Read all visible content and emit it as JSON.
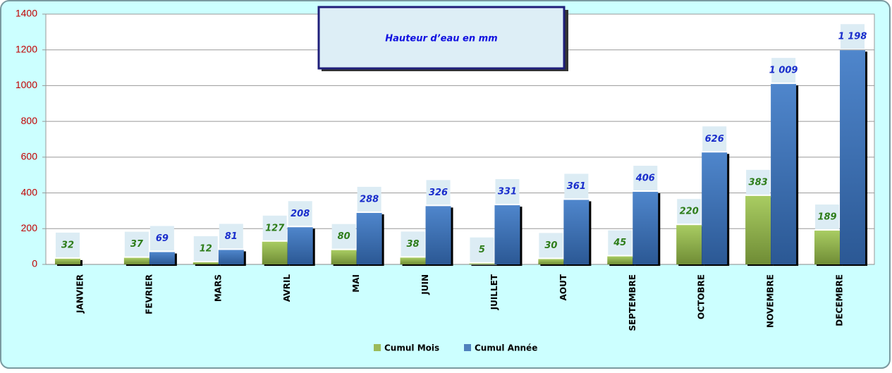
{
  "chart_data": {
    "type": "bar",
    "title": "Hauteur d’eau en mm",
    "categories": [
      "JANVIER",
      "FEVRIER",
      "MARS",
      "AVRIL",
      "MAI",
      "JUIN",
      "JUILLET",
      "AOUT",
      "SEPTEMBRE",
      "OCTOBRE",
      "NOVEMBRE",
      "DECEMBRE"
    ],
    "series": [
      {
        "name": "Cumul Mois",
        "color": "#9bbb59",
        "values": [
          32,
          37,
          12,
          127,
          80,
          38,
          5,
          30,
          45,
          220,
          383,
          189
        ]
      },
      {
        "name": "Cumul Année",
        "color": "#4f81bd",
        "values": [
          null,
          69,
          81,
          208,
          288,
          326,
          331,
          361,
          406,
          626,
          1009,
          1198
        ],
        "value_labels": [
          null,
          "69",
          "81",
          "208",
          "288",
          "326",
          "331",
          "361",
          "406",
          "626",
          "1 009",
          "1 198"
        ]
      }
    ],
    "ylim": [
      0,
      1400
    ],
    "yticks": [
      0,
      200,
      400,
      600,
      800,
      1000,
      1200,
      1400
    ],
    "grid": true,
    "legend": "bottom"
  }
}
